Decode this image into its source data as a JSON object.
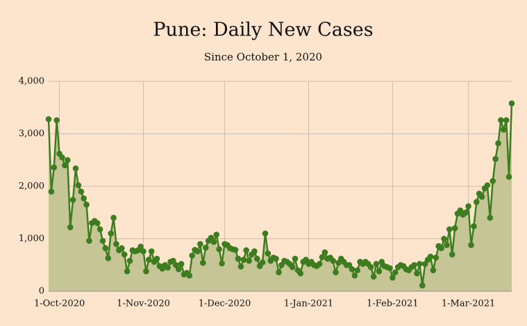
{
  "chart_data": {
    "type": "line",
    "title": "Pune: Daily New Cases",
    "subtitle": "Since October 1, 2020",
    "x": [
      "2020-09-27",
      "2020-09-28",
      "2020-09-29",
      "2020-09-30",
      "2020-10-01",
      "2020-10-02",
      "2020-10-03",
      "2020-10-04",
      "2020-10-05",
      "2020-10-06",
      "2020-10-07",
      "2020-10-08",
      "2020-10-09",
      "2020-10-10",
      "2020-10-11",
      "2020-10-12",
      "2020-10-13",
      "2020-10-14",
      "2020-10-15",
      "2020-10-16",
      "2020-10-17",
      "2020-10-18",
      "2020-10-19",
      "2020-10-20",
      "2020-10-21",
      "2020-10-22",
      "2020-10-23",
      "2020-10-24",
      "2020-10-25",
      "2020-10-26",
      "2020-10-27",
      "2020-10-28",
      "2020-10-29",
      "2020-10-30",
      "2020-10-31",
      "2020-11-01",
      "2020-11-02",
      "2020-11-03",
      "2020-11-04",
      "2020-11-05",
      "2020-11-06",
      "2020-11-07",
      "2020-11-08",
      "2020-11-09",
      "2020-11-10",
      "2020-11-11",
      "2020-11-12",
      "2020-11-13",
      "2020-11-14",
      "2020-11-15",
      "2020-11-16",
      "2020-11-17",
      "2020-11-18",
      "2020-11-19",
      "2020-11-20",
      "2020-11-21",
      "2020-11-22",
      "2020-11-23",
      "2020-11-24",
      "2020-11-25",
      "2020-11-26",
      "2020-11-27",
      "2020-11-28",
      "2020-11-29",
      "2020-11-30",
      "2020-12-01",
      "2020-12-02",
      "2020-12-03",
      "2020-12-04",
      "2020-12-05",
      "2020-12-06",
      "2020-12-07",
      "2020-12-08",
      "2020-12-09",
      "2020-12-10",
      "2020-12-11",
      "2020-12-12",
      "2020-12-13",
      "2020-12-14",
      "2020-12-15",
      "2020-12-16",
      "2020-12-17",
      "2020-12-18",
      "2020-12-19",
      "2020-12-20",
      "2020-12-21",
      "2020-12-22",
      "2020-12-23",
      "2020-12-24",
      "2020-12-25",
      "2020-12-26",
      "2020-12-27",
      "2020-12-28",
      "2020-12-29",
      "2020-12-30",
      "2020-12-31",
      "2021-01-01",
      "2021-01-02",
      "2021-01-03",
      "2021-01-04",
      "2021-01-05",
      "2021-01-06",
      "2021-01-07",
      "2021-01-08",
      "2021-01-09",
      "2021-01-10",
      "2021-01-11",
      "2021-01-12",
      "2021-01-13",
      "2021-01-14",
      "2021-01-15",
      "2021-01-16",
      "2021-01-17",
      "2021-01-18",
      "2021-01-19",
      "2021-01-20",
      "2021-01-21",
      "2021-01-22",
      "2021-01-23",
      "2021-01-24",
      "2021-01-25",
      "2021-01-26",
      "2021-01-27",
      "2021-01-28",
      "2021-01-29",
      "2021-01-30",
      "2021-01-31",
      "2021-02-01",
      "2021-02-02",
      "2021-02-03",
      "2021-02-04",
      "2021-02-05",
      "2021-02-06",
      "2021-02-07",
      "2021-02-08",
      "2021-02-09",
      "2021-02-10",
      "2021-02-11",
      "2021-02-12",
      "2021-02-13",
      "2021-02-14",
      "2021-02-15",
      "2021-02-16",
      "2021-02-17",
      "2021-02-18",
      "2021-02-19",
      "2021-02-20",
      "2021-02-21",
      "2021-02-22",
      "2021-02-23",
      "2021-02-24",
      "2021-02-25",
      "2021-02-26",
      "2021-02-27",
      "2021-02-28",
      "2021-03-01",
      "2021-03-02",
      "2021-03-03",
      "2021-03-04",
      "2021-03-05",
      "2021-03-06",
      "2021-03-07",
      "2021-03-08",
      "2021-03-09",
      "2021-03-10",
      "2021-03-11",
      "2021-03-12",
      "2021-03-13",
      "2021-03-14",
      "2021-03-15",
      "2021-03-16",
      "2021-03-17"
    ],
    "values": [
      3280,
      1900,
      2360,
      3260,
      2620,
      2550,
      2400,
      2500,
      1220,
      1740,
      2340,
      2020,
      1900,
      1770,
      1650,
      960,
      1300,
      1340,
      1300,
      1180,
      960,
      820,
      630,
      1100,
      1400,
      900,
      780,
      820,
      700,
      380,
      580,
      780,
      760,
      780,
      850,
      760,
      380,
      600,
      760,
      560,
      620,
      480,
      430,
      500,
      450,
      560,
      580,
      500,
      420,
      520,
      320,
      350,
      300,
      680,
      790,
      760,
      900,
      540,
      830,
      960,
      1020,
      940,
      1080,
      800,
      530,
      900,
      880,
      820,
      800,
      790,
      620,
      470,
      600,
      780,
      580,
      700,
      760,
      620,
      480,
      550,
      1100,
      720,
      580,
      640,
      620,
      360,
      500,
      580,
      560,
      520,
      460,
      620,
      400,
      340,
      560,
      600,
      520,
      560,
      500,
      480,
      520,
      650,
      740,
      620,
      640,
      580,
      360,
      540,
      620,
      560,
      500,
      500,
      420,
      300,
      400,
      560,
      520,
      560,
      520,
      460,
      280,
      520,
      380,
      560,
      480,
      460,
      440,
      260,
      360,
      460,
      500,
      480,
      420,
      400,
      460,
      500,
      340,
      520,
      110,
      520,
      600,
      660,
      400,
      640,
      860,
      820,
      1000,
      880,
      1180,
      700,
      1200,
      1480,
      1540,
      1460,
      1500,
      1620,
      880,
      1240,
      1700,
      1860,
      1800,
      1960,
      2020,
      1400,
      2100,
      2520,
      2820,
      3260,
      3080,
      3260,
      2180,
      3580
    ],
    "color": "#3d7c1f",
    "area_color": "#c6c596",
    "xlim": [
      "2020-09-27",
      "2021-03-17"
    ],
    "xticks": [
      {
        "value": "2020-10-01",
        "label": "1-Oct-2020"
      },
      {
        "value": "2020-11-01",
        "label": "1-Nov-2020"
      },
      {
        "value": "2020-12-01",
        "label": "1-Dec-2020"
      },
      {
        "value": "2021-01-01",
        "label": "1-Jan-2021"
      },
      {
        "value": "2021-02-01",
        "label": "1-Feb-2021"
      },
      {
        "value": "2021-03-01",
        "label": "1-Mar-2021"
      }
    ],
    "ylim": [
      0,
      4000
    ],
    "yticks": [
      0,
      {
        "value": 1000,
        "label": "1,000"
      },
      {
        "value": 2000,
        "label": "2,000"
      },
      {
        "value": 3000,
        "label": "3,000"
      },
      {
        "value": 4000,
        "label": "4,000"
      }
    ],
    "grid": true
  }
}
